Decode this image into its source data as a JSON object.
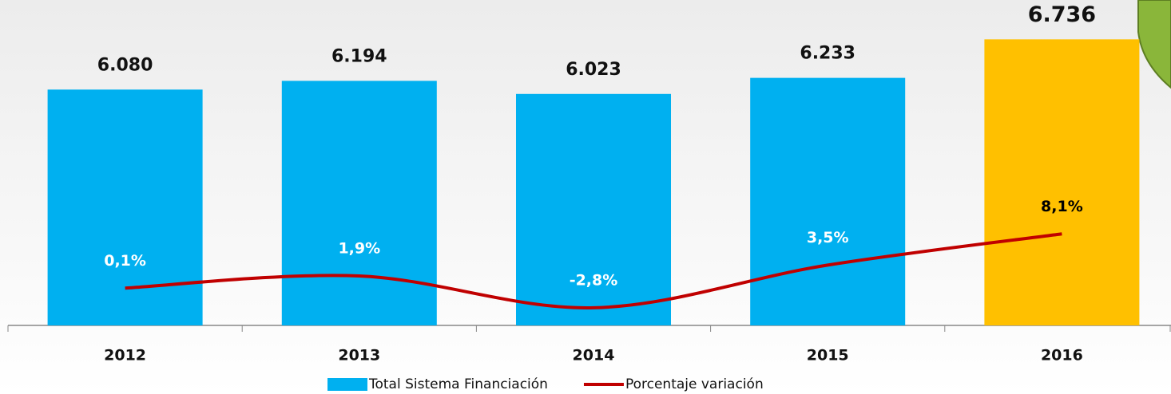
{
  "chart_data": {
    "type": "bar",
    "categories": [
      "2012",
      "2013",
      "2014",
      "2015",
      "2016"
    ],
    "series": [
      {
        "name": "Total Sistema Financiación",
        "type": "bar",
        "axis": "y",
        "color": "#00B0F0",
        "colors": [
          "#00B0F0",
          "#00B0F0",
          "#00B0F0",
          "#00B0F0",
          "#FFC000"
        ],
        "values": [
          6080,
          6194,
          6023,
          6233,
          6736
        ],
        "value_labels": [
          "6.080",
          "6.194",
          "6.023",
          "6.233",
          "6.736"
        ]
      },
      {
        "name": "Porcentaje variación",
        "type": "line",
        "axis": "y2",
        "color": "#C00000",
        "values": [
          0.1,
          1.9,
          -2.8,
          3.5,
          8.1
        ],
        "value_labels": [
          "0,1%",
          "1,9%",
          "-2,8%",
          "3,5%",
          "8,1%"
        ],
        "label_colors": [
          "#ffffff",
          "#ffffff",
          "#ffffff",
          "#ffffff",
          "#000000"
        ]
      }
    ],
    "ylim": [
      3000,
      7250
    ],
    "y2lim": [
      -5.4,
      42.6
    ]
  }
}
